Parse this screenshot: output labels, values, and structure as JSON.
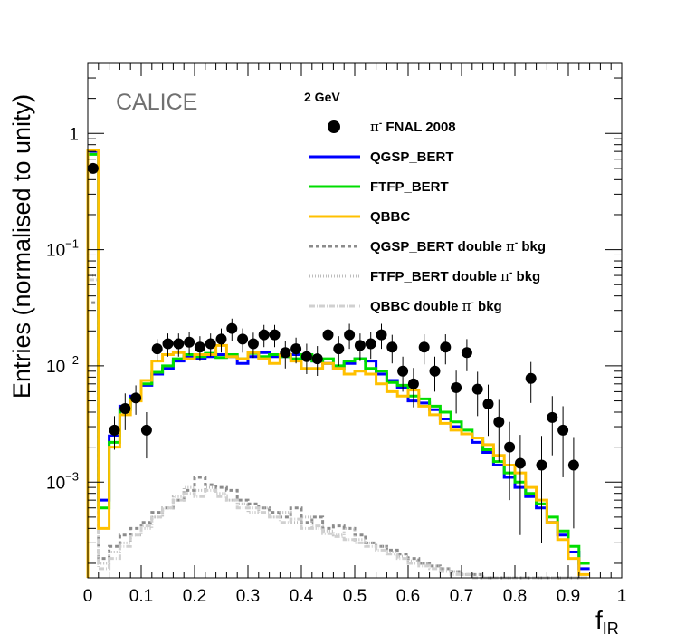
{
  "chart_data": {
    "type": "line",
    "watermark": "CALICE",
    "energy_label": "2 GeV",
    "xlabel": "f",
    "xlabel_sub": "IR",
    "ylabel": "Entries (normalised to unity)",
    "xlim": [
      0,
      1
    ],
    "ylim": [
      0.00015,
      4.0
    ],
    "y_scale": "log",
    "x_ticks": [
      "0",
      "0.1",
      "0.2",
      "0.3",
      "0.4",
      "0.5",
      "0.6",
      "0.7",
      "0.8",
      "0.9",
      "1"
    ],
    "y_ticks": [
      {
        "value": 1,
        "label": "1",
        "exp": ""
      },
      {
        "value": 0.1,
        "label": "10",
        "exp": "−1"
      },
      {
        "value": 0.01,
        "label": "10",
        "exp": "−2"
      },
      {
        "value": 0.001,
        "label": "10",
        "exp": "−3"
      }
    ],
    "legend_position": "top-right",
    "bin_width": 0.02,
    "bin_edges_start": 0,
    "colors": {
      "data": "#000000",
      "qgsp": "#0000ff",
      "ftfp": "#00dd00",
      "qbbc": "#ffc000",
      "bkg": "#999999"
    },
    "series": [
      {
        "name": "π⁻ FNAL 2008",
        "legend_main": "π",
        "legend_sup": "-",
        "legend_rest": " FNAL 2008",
        "style": "markers",
        "x": [
          0.01,
          0.05,
          0.07,
          0.09,
          0.11,
          0.13,
          0.15,
          0.17,
          0.19,
          0.21,
          0.23,
          0.25,
          0.27,
          0.29,
          0.31,
          0.33,
          0.35,
          0.37,
          0.39,
          0.41,
          0.43,
          0.45,
          0.47,
          0.49,
          0.51,
          0.53,
          0.55,
          0.57,
          0.59,
          0.61,
          0.63,
          0.65,
          0.67,
          0.69,
          0.71,
          0.73,
          0.75,
          0.77,
          0.79,
          0.81,
          0.83,
          0.85,
          0.87,
          0.89,
          0.91
        ],
        "y": [
          0.5,
          0.0028,
          0.0043,
          0.0053,
          0.0028,
          0.014,
          0.0155,
          0.0155,
          0.016,
          0.0145,
          0.0155,
          0.017,
          0.021,
          0.017,
          0.0155,
          0.0185,
          0.0185,
          0.013,
          0.014,
          0.012,
          0.0115,
          0.0185,
          0.014,
          0.0185,
          0.015,
          0.0155,
          0.0185,
          0.0145,
          0.009,
          0.007,
          0.0145,
          0.009,
          0.0145,
          0.0065,
          0.013,
          0.0063,
          0.0047,
          0.0033,
          0.002,
          0.00145,
          0.0078,
          0.0014,
          0.0036,
          0.0028,
          0.0014
        ],
        "yerr": [
          0.02,
          0.0009,
          0.0015,
          0.0015,
          0.0012,
          0.003,
          0.0035,
          0.0035,
          0.0035,
          0.0035,
          0.0035,
          0.004,
          0.0045,
          0.004,
          0.0038,
          0.004,
          0.004,
          0.0035,
          0.0035,
          0.0035,
          0.0033,
          0.0045,
          0.004,
          0.0045,
          0.004,
          0.004,
          0.0045,
          0.004,
          0.003,
          0.0026,
          0.0042,
          0.003,
          0.0042,
          0.0026,
          0.004,
          0.0026,
          0.0022,
          0.0018,
          0.0013,
          0.0011,
          0.003,
          0.0011,
          0.0019,
          0.0017,
          0.001
        ]
      },
      {
        "name": "QGSP_BERT",
        "legend_main": "QGSP_BERT",
        "style": "step",
        "color": "#0000ff",
        "width": 3,
        "y": [
          0.7,
          0.0007,
          0.0025,
          0.0045,
          0.0055,
          0.0068,
          0.0085,
          0.0095,
          0.011,
          0.012,
          0.0115,
          0.012,
          0.0125,
          0.012,
          0.0105,
          0.012,
          0.013,
          0.012,
          0.012,
          0.0125,
          0.012,
          0.011,
          0.0105,
          0.0095,
          0.0105,
          0.0115,
          0.011,
          0.0085,
          0.0075,
          0.0065,
          0.005,
          0.0048,
          0.0042,
          0.0035,
          0.003,
          0.0026,
          0.0022,
          0.0018,
          0.0014,
          0.0011,
          0.0009,
          0.00075,
          0.0006,
          0.00045,
          0.00035,
          0.00025,
          0.00018
        ]
      },
      {
        "name": "FTFP_BERT",
        "legend_main": "FTFP_BERT",
        "style": "step",
        "color": "#00dd00",
        "width": 3,
        "y": [
          0.66,
          0.0006,
          0.0022,
          0.0042,
          0.0052,
          0.007,
          0.0088,
          0.01,
          0.0115,
          0.0125,
          0.012,
          0.0128,
          0.0118,
          0.0125,
          0.0115,
          0.0128,
          0.012,
          0.0125,
          0.012,
          0.0115,
          0.0125,
          0.011,
          0.0115,
          0.01,
          0.011,
          0.0115,
          0.0095,
          0.009,
          0.0072,
          0.0068,
          0.0055,
          0.0052,
          0.0045,
          0.004,
          0.0033,
          0.0028,
          0.0024,
          0.0019,
          0.0015,
          0.0012,
          0.001,
          0.0008,
          0.00065,
          0.0005,
          0.00038,
          0.00028,
          0.0002
        ]
      },
      {
        "name": "QBBC",
        "legend_main": "QBBC",
        "style": "step",
        "color": "#ffc000",
        "width": 3,
        "y": [
          0.72,
          0.0004,
          0.002,
          0.0038,
          0.005,
          0.0075,
          0.011,
          0.0125,
          0.013,
          0.0115,
          0.0125,
          0.0125,
          0.015,
          0.012,
          0.0115,
          0.013,
          0.0115,
          0.0105,
          0.0125,
          0.011,
          0.0095,
          0.0095,
          0.0105,
          0.0095,
          0.0085,
          0.009,
          0.0085,
          0.007,
          0.006,
          0.0055,
          0.0062,
          0.0045,
          0.0038,
          0.0032,
          0.0028,
          0.0026,
          0.0024,
          0.0021,
          0.0017,
          0.0014,
          0.0012,
          0.0009,
          0.0007,
          0.00045,
          0.00032,
          0.00022,
          0.00016
        ]
      },
      {
        "name": "QGSP_BERT double π⁻ bkg",
        "legend_main": "QGSP_BERT double ",
        "legend_greek": "π",
        "legend_sup": "-",
        "legend_rest": " bkg",
        "style": "step",
        "color": "#8c8c8c",
        "width": 3,
        "dash": "4,3",
        "y": [
          0.035,
          0.00022,
          0.00028,
          0.00035,
          0.0004,
          0.00045,
          0.00055,
          0.0006,
          0.0007,
          0.00085,
          0.0011,
          0.00095,
          0.0009,
          0.00085,
          0.0007,
          0.00065,
          0.0006,
          0.00055,
          0.0005,
          0.0006,
          0.00045,
          0.0005,
          0.0004,
          0.00042,
          0.0004,
          0.00035,
          0.0003,
          0.00028,
          0.00026,
          0.00024,
          0.00022,
          0.0002,
          0.00019,
          0.00018,
          0.00017,
          0.00016,
          0.00016,
          0.00015,
          0.00015,
          0.00015,
          0.00015,
          0.00015,
          0.00015,
          0.00015,
          0.00015,
          0.00015,
          0.00015
        ]
      },
      {
        "name": "FTFP_BERT double π⁻ bkg",
        "legend_main": "FTFP_BERT double ",
        "legend_greek": "π",
        "legend_sup": "-",
        "legend_rest": " bkg",
        "style": "step",
        "color": "#bdbdbd",
        "width": 3,
        "dash": "1,2",
        "y": [
          0.06,
          0.0002,
          0.00025,
          0.0003,
          0.00035,
          0.0004,
          0.0005,
          0.0006,
          0.00075,
          0.0009,
          0.00085,
          0.0009,
          0.0008,
          0.0007,
          0.00065,
          0.00055,
          0.0006,
          0.0005,
          0.00055,
          0.00045,
          0.0005,
          0.0004,
          0.00038,
          0.00035,
          0.0004,
          0.00032,
          0.0003,
          0.00028,
          0.00025,
          0.00023,
          0.00021,
          0.0002,
          0.00019,
          0.00018,
          0.00017,
          0.00016,
          0.00016,
          0.00015,
          0.00015,
          0.00015,
          0.00015,
          0.00015,
          0.00015,
          0.00015,
          0.00015,
          0.00015,
          0.00015
        ]
      },
      {
        "name": "QBBC double π⁻ bkg",
        "legend_main": "QBBC double ",
        "legend_greek": "π",
        "legend_sup": "-",
        "legend_rest": " bkg",
        "style": "step",
        "color": "#d0d0d0",
        "width": 3,
        "dash": "6,2,1,2",
        "y": [
          0.055,
          0.00018,
          0.00022,
          0.00028,
          0.00035,
          0.00042,
          0.0005,
          0.0006,
          0.0007,
          0.0008,
          0.00075,
          0.00085,
          0.00075,
          0.0007,
          0.0006,
          0.0006,
          0.00055,
          0.0005,
          0.00045,
          0.00048,
          0.0004,
          0.00042,
          0.00036,
          0.00034,
          0.00032,
          0.0003,
          0.00028,
          0.00026,
          0.00024,
          0.00022,
          0.0002,
          0.00019,
          0.00018,
          0.00017,
          0.00016,
          0.00016,
          0.00015,
          0.00015,
          0.00015,
          0.00015,
          0.00015,
          0.00015,
          0.00015,
          0.00015,
          0.00015,
          0.00015,
          0.00015
        ]
      }
    ]
  }
}
